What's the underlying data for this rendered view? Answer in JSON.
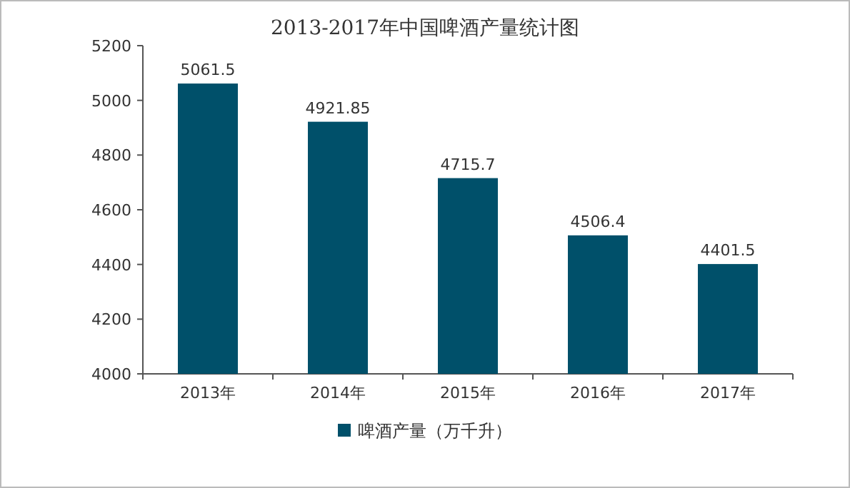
{
  "chart_data": {
    "type": "bar",
    "title": "2013-2017年中国啤酒产量统计图",
    "categories": [
      "2013年",
      "2014年",
      "2015年",
      "2016年",
      "2017年"
    ],
    "series": [
      {
        "name": "啤酒产量（万千升）",
        "color": "#00506a",
        "values": [
          5061.5,
          4921.85,
          4715.7,
          4506.4,
          4401.5
        ]
      }
    ],
    "ylim": [
      4000,
      5200
    ],
    "yticks": [
      4000,
      4200,
      4400,
      4600,
      4800,
      5000,
      5200
    ],
    "data_labels": true,
    "legend": "bottom"
  }
}
